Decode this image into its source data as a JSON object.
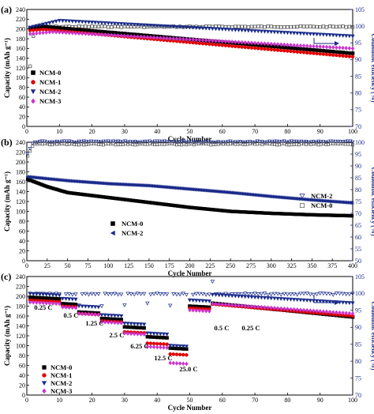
{
  "colors": {
    "NCM-0": "#000000",
    "NCM-1": "#e00000",
    "NCM-2": "#1a2a8a",
    "NCM-3": "#cc33cc",
    "axis_right": "#1a2a8a"
  },
  "chart_data": [
    {
      "type": "scatter",
      "panel_label": "(a)",
      "xlabel": "Cycle Number",
      "ylabel": "Capacity (mAh g⁻¹)",
      "ylabel_right": "Coulombic efficiency (%)",
      "xlim": [
        0,
        100
      ],
      "xticks": [
        0,
        10,
        20,
        30,
        40,
        50,
        60,
        70,
        80,
        90,
        100
      ],
      "ylim": [
        0,
        240
      ],
      "yticks": [
        0,
        20,
        40,
        60,
        80,
        100,
        120,
        140,
        160,
        180,
        200,
        220,
        240
      ],
      "ylim_right": [
        70,
        105
      ],
      "yticks_right": [
        70,
        75,
        80,
        85,
        90,
        95,
        100,
        105
      ],
      "legend": [
        "NCM-0",
        "NCM-1",
        "NCM-2",
        "NCM-3"
      ],
      "legend_position": "left",
      "capacity_series": [
        {
          "name": "NCM-0",
          "marker": "square",
          "start": 202,
          "peak_cycle": 5,
          "peak": 205,
          "end": 150
        },
        {
          "name": "NCM-1",
          "marker": "circle",
          "start": 197,
          "peak_cycle": 5,
          "peak": 199,
          "end": 143
        },
        {
          "name": "NCM-2",
          "marker": "triangle-down",
          "start": 203,
          "peak_cycle": 10,
          "peak": 217,
          "end": 185
        },
        {
          "name": "NCM-3",
          "marker": "diamond",
          "start": 190,
          "peak_cycle": 8,
          "peak": 194,
          "end": 160
        }
      ],
      "efficiency_series": {
        "marker": "hollow-square",
        "first": 88,
        "second": 97,
        "steady": 100
      }
    },
    {
      "type": "scatter",
      "panel_label": "(b)",
      "xlabel": "Cycle Number",
      "ylabel": "Capacity (mAh g⁻¹)",
      "ylabel_right": "Coulombic efficiency (%)",
      "xlim": [
        0,
        400
      ],
      "xticks": [
        0,
        25,
        50,
        75,
        100,
        125,
        150,
        175,
        200,
        225,
        250,
        275,
        300,
        325,
        350,
        375,
        400
      ],
      "ylim": [
        0,
        240
      ],
      "yticks": [
        0,
        20,
        40,
        60,
        80,
        100,
        120,
        140,
        160,
        180,
        200,
        220,
        240
      ],
      "ylim_right": [
        50,
        100
      ],
      "yticks_right": [
        50,
        55,
        60,
        65,
        70,
        75,
        80,
        85,
        90,
        95,
        100
      ],
      "legend_capacity": [
        "NCM-0",
        "NCM-2"
      ],
      "legend_efficiency": [
        "NCM-2",
        "NCM-0"
      ],
      "capacity_series": [
        {
          "name": "NCM-0",
          "marker": "square",
          "points": [
            [
              1,
              165
            ],
            [
              25,
              150
            ],
            [
              50,
              138
            ],
            [
              100,
              128
            ],
            [
              150,
              118
            ],
            [
              200,
              108
            ],
            [
              250,
              100
            ],
            [
              300,
              96
            ],
            [
              350,
              93
            ],
            [
              400,
              91
            ]
          ]
        },
        {
          "name": "NCM-2",
          "marker": "triangle-left",
          "points": [
            [
              1,
              170
            ],
            [
              25,
              166
            ],
            [
              50,
              162
            ],
            [
              100,
              156
            ],
            [
              150,
              152
            ],
            [
              200,
              145
            ],
            [
              250,
              138
            ],
            [
              300,
              130
            ],
            [
              350,
              123
            ],
            [
              400,
              117
            ]
          ]
        }
      ],
      "efficiency_series": [
        {
          "name": "NCM-2",
          "marker": "hollow-triangle-down",
          "steady": 100.5
        },
        {
          "name": "NCM-0",
          "marker": "hollow-square",
          "steady": 99.5
        }
      ]
    },
    {
      "type": "scatter",
      "panel_label": "(c)",
      "xlabel": "Cycle Number",
      "ylabel": "Capacity (mAh g⁻¹)",
      "ylabel_right": "Coulombic efficiency (%)",
      "xlim": [
        0,
        100
      ],
      "xticks": [
        0,
        10,
        20,
        30,
        40,
        50,
        60,
        70,
        80,
        90,
        100
      ],
      "ylim": [
        0,
        240
      ],
      "yticks": [
        0,
        20,
        40,
        60,
        80,
        100,
        120,
        140,
        160,
        180,
        200,
        220,
        240
      ],
      "ylim_right": [
        70,
        105
      ],
      "yticks_right": [
        70,
        75,
        80,
        85,
        90,
        95,
        100,
        105
      ],
      "legend": [
        "NCM-0",
        "NCM-1",
        "NCM-2",
        "NCM-3"
      ],
      "rate_steps": [
        {
          "label": "0.25 C",
          "start": 1,
          "end": 10,
          "NCM-0": 198,
          "NCM-1": 192,
          "NCM-2": 205,
          "NCM-3": 188
        },
        {
          "label": "0.5 C",
          "start": 11,
          "end": 15,
          "NCM-0": 185,
          "NCM-1": 180,
          "NCM-2": 195,
          "NCM-3": 178
        },
        {
          "label": "1.25 C",
          "start": 16,
          "end": 22,
          "NCM-0": 168,
          "NCM-1": 165,
          "NCM-2": 180,
          "NCM-3": 165
        },
        {
          "label": "2.5 C",
          "start": 23,
          "end": 29,
          "NCM-0": 155,
          "NCM-1": 150,
          "NCM-2": 162,
          "NCM-3": 148
        },
        {
          "label": "6.25 C",
          "start": 30,
          "end": 36,
          "NCM-0": 138,
          "NCM-1": 128,
          "NCM-2": 145,
          "NCM-3": 125
        },
        {
          "label": "12.5 C",
          "start": 37,
          "end": 43,
          "NCM-0": 118,
          "NCM-1": 105,
          "NCM-2": 125,
          "NCM-3": 98
        },
        {
          "label": "25.0 C",
          "start": 44,
          "end": 49,
          "NCM-0": 95,
          "NCM-1": 83,
          "NCM-2": 100,
          "NCM-3": 65
        },
        {
          "label": "0.5 C",
          "start": 50,
          "end": 56,
          "NCM-0": 180,
          "NCM-1": 176,
          "NCM-2": 192,
          "NCM-3": 172
        },
        {
          "label": "0.25 C",
          "start": 57,
          "end": 100,
          "NCM-0": 186,
          "NCM-1": 184,
          "NCM-2": 203,
          "NCM-3": 185,
          "end_values": {
            "NCM-0": 158,
            "NCM-1": 160,
            "NCM-2": 186,
            "NCM-3": 165
          }
        }
      ],
      "efficiency_series": {
        "marker": "hollow-triangle-down",
        "steady": 100
      }
    }
  ]
}
